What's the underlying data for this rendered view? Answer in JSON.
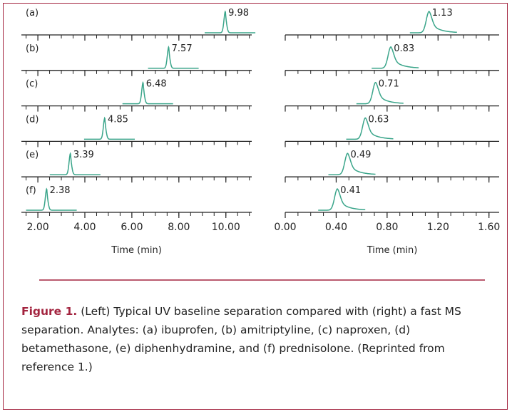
{
  "figure": {
    "panels": [
      {
        "xlabel": "Time (min)",
        "xlim": [
          1.3,
          11.1
        ],
        "xticks": [
          {
            "value": 2,
            "label": "2.00"
          },
          {
            "value": 4,
            "label": "4.00"
          },
          {
            "value": 6,
            "label": "6.00"
          },
          {
            "value": 8,
            "label": "8.00"
          },
          {
            "value": 10,
            "label": "10.00"
          }
        ],
        "minor_xticks": [
          1.5,
          2,
          2.5,
          3,
          3.5,
          4,
          4.5,
          5,
          5.5,
          6,
          6.5,
          7,
          7.5,
          8,
          8.5,
          9,
          9.5,
          10,
          10.5,
          11
        ],
        "traces": [
          {
            "label": "(a)",
            "peak": 9.98
          },
          {
            "label": "(b)",
            "peak": 7.57
          },
          {
            "label": "(c)",
            "peak": 6.48
          },
          {
            "label": "(d)",
            "peak": 4.85
          },
          {
            "label": "(e)",
            "peak": 3.39
          },
          {
            "label": "(f)",
            "peak": 2.38
          }
        ]
      },
      {
        "xlabel": "Time (min)",
        "xlim": [
          0,
          1.68
        ],
        "xticks": [
          {
            "value": 0,
            "label": "0.00"
          },
          {
            "value": 0.4,
            "label": "0.40"
          },
          {
            "value": 0.8,
            "label": "0.80"
          },
          {
            "value": 1.2,
            "label": "1.20"
          },
          {
            "value": 1.6,
            "label": "1.60"
          }
        ],
        "minor_xticks": [
          0,
          0.1,
          0.2,
          0.3,
          0.4,
          0.5,
          0.6,
          0.7,
          0.8,
          0.9,
          1.0,
          1.1,
          1.2,
          1.3,
          1.4,
          1.5,
          1.6
        ],
        "traces": [
          {
            "peak": 1.13
          },
          {
            "peak": 0.83
          },
          {
            "peak": 0.71
          },
          {
            "peak": 0.63
          },
          {
            "peak": 0.49
          },
          {
            "peak": 0.41
          }
        ]
      }
    ],
    "caption": {
      "label": "Figure 1.",
      "text": "(Left) Typical UV baseline separation compared with (right) a fast MS separation. Analytes: (a) ibuprofen, (b) amitriptyline, (c) naproxen, (d) betamethasone, (e) diphenhydramine, and (f) prednisolone. (Reprinted from reference 1.)"
    }
  }
}
